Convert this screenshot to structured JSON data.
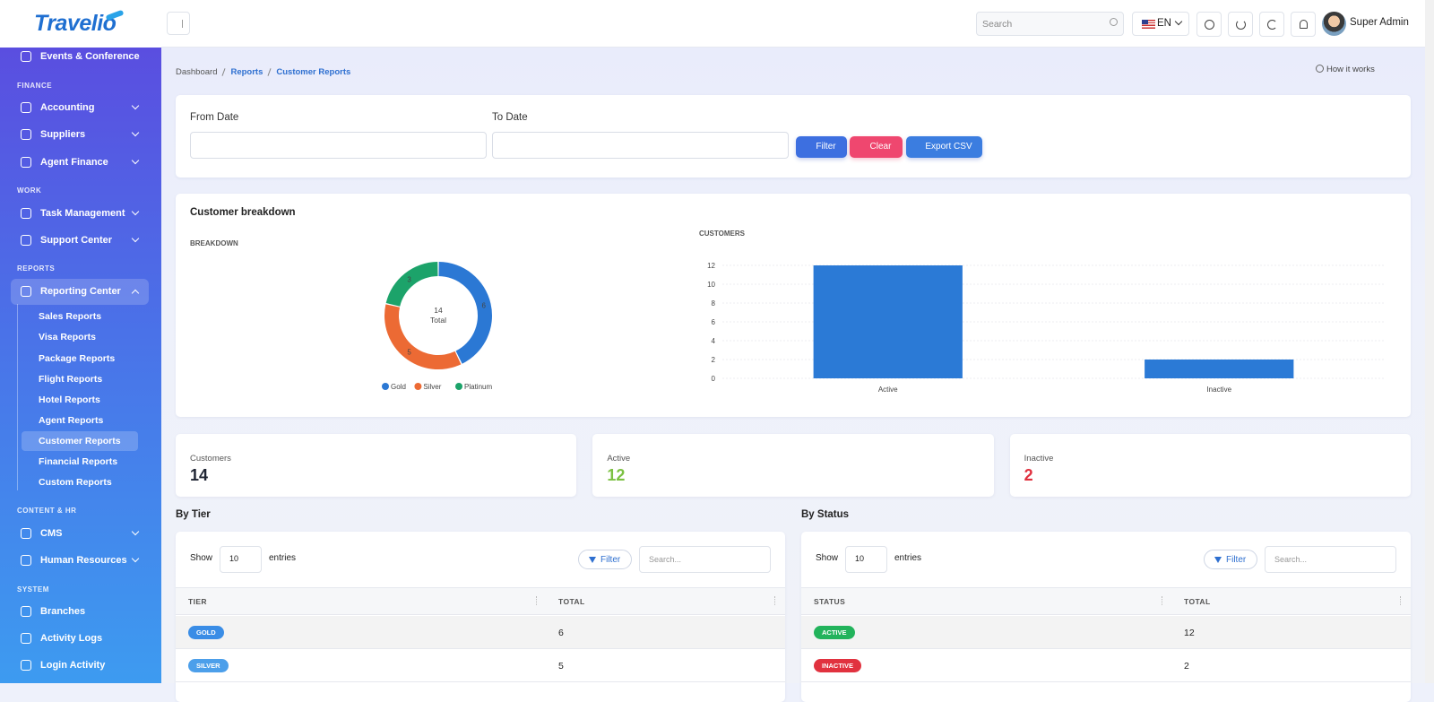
{
  "brand": "Travelio",
  "header": {
    "search_placeholder": "Search",
    "language": "EN",
    "user_name": "Super Admin"
  },
  "sidebar": {
    "top_item": "Events & Conference",
    "sections": [
      {
        "title": "FINANCE",
        "items": [
          "Accounting",
          "Suppliers",
          "Agent Finance"
        ]
      },
      {
        "title": "WORK",
        "items": [
          "Task Management",
          "Support Center"
        ]
      },
      {
        "title": "REPORTS",
        "items": [
          "Reporting Center"
        ],
        "subitems": [
          "Sales Reports",
          "Visa Reports",
          "Package Reports",
          "Flight Reports",
          "Hotel Reports",
          "Agent Reports",
          "Customer Reports",
          "Financial Reports",
          "Custom Reports"
        ]
      },
      {
        "title": "CONTENT & HR",
        "items": [
          "CMS",
          "Human Resources"
        ]
      },
      {
        "title": "SYSTEM",
        "items": [
          "Branches",
          "Activity Logs",
          "Login Activity"
        ]
      }
    ]
  },
  "breadcrumb": [
    "Dashboard",
    "Reports",
    "Customer Reports"
  ],
  "help_link": "How it works",
  "filters": {
    "from_label": "From Date",
    "to_label": "To Date",
    "filter_button": "Filter",
    "clear_button": "Clear",
    "export_button": "Export CSV"
  },
  "breakdown_card": {
    "title": "Customer breakdown"
  },
  "chart_data": [
    {
      "type": "donut",
      "title": "BREAKDOWN",
      "categories": [
        "Gold",
        "Silver",
        "Platinum"
      ],
      "values": [
        6,
        5,
        3
      ],
      "colors": [
        "#2b78d4",
        "#ec6a34",
        "#1ca36a"
      ],
      "center_value": 14,
      "center_label": "Total",
      "legend": "bottom"
    },
    {
      "type": "bar",
      "title": "CUSTOMERS",
      "categories": [
        "Active",
        "Inactive"
      ],
      "values": [
        12,
        2
      ],
      "color": "#2b7ad6",
      "ylim": [
        0,
        12
      ],
      "yticks": [
        0,
        2,
        4,
        6,
        8,
        10,
        12
      ],
      "grid": true
    }
  ],
  "stats": [
    {
      "label": "Customers",
      "value": 14,
      "color": "#1f2533"
    },
    {
      "label": "Active",
      "value": 12,
      "color": "#7cc142"
    },
    {
      "label": "Inactive",
      "value": 2,
      "color": "#e0303e"
    }
  ],
  "tables": [
    {
      "title": "By Tier",
      "show_label": "Show",
      "page_size": 10,
      "entries_label": "entries",
      "filter_button": "Filter",
      "search_placeholder": "Search...",
      "columns": [
        "TIER",
        "TOTAL"
      ],
      "rows": [
        [
          "GOLD",
          6
        ],
        [
          "SILVER",
          5
        ]
      ],
      "badge_colors": [
        "#3a8de6",
        "#4c9fea"
      ]
    },
    {
      "title": "By Status",
      "show_label": "Show",
      "page_size": 10,
      "entries_label": "entries",
      "filter_button": "Filter",
      "search_placeholder": "Search...",
      "columns": [
        "STATUS",
        "TOTAL"
      ],
      "rows": [
        [
          "ACTIVE",
          12
        ],
        [
          "INACTIVE",
          2
        ]
      ],
      "badge_colors": [
        "#22b35b",
        "#e1323f"
      ]
    }
  ]
}
